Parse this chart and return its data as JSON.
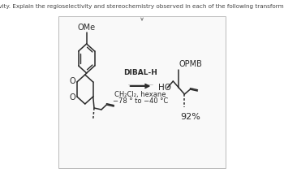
{
  "title_text": "Reactivity. Explain the regioselectivity and stereochemistry observed in each of the following transformations.",
  "title_fontsize": 5.2,
  "title_color": "#444444",
  "background_color": "#ffffff",
  "reagent_line1": "DIBAL-H",
  "reagent_line2": "CH₂Cl₂, hexane",
  "reagent_line3": "−78 ° to −40 °C",
  "yield_text": "92%",
  "reagent_fontsize": 6.5,
  "yield_fontsize": 7.5,
  "label_OMe": "OMe",
  "label_OPMB": "OPMB",
  "label_HO": "HO",
  "label_fontsize": 7.0
}
